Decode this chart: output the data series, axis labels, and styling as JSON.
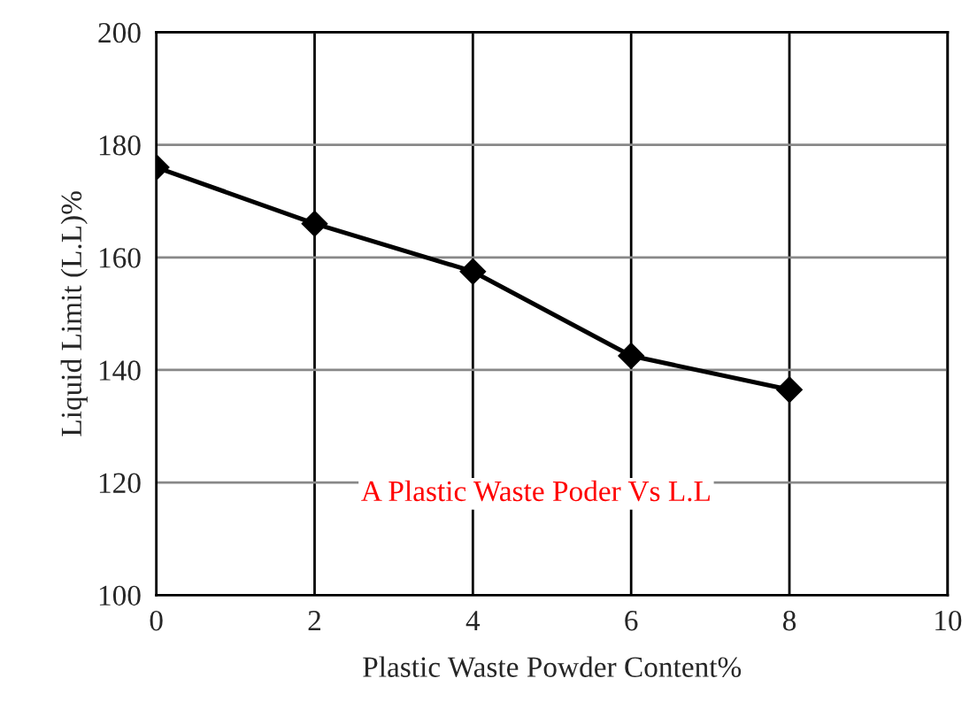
{
  "chart_data": {
    "type": "line",
    "xlabel": "Plastic Waste Powder Content%",
    "ylabel": "Liquid Limit (L.L)%",
    "x": [
      0,
      2,
      4,
      6,
      8
    ],
    "series": [
      {
        "color": "#000000",
        "values": [
          176,
          166,
          157.5,
          142.5,
          136.5
        ]
      }
    ],
    "xlim": [
      0,
      10
    ],
    "xticks": [
      0,
      2,
      4,
      6,
      8,
      10
    ],
    "ylim": [
      100,
      200
    ],
    "yticks": [
      100,
      120,
      140,
      160,
      180,
      200
    ],
    "grid": true,
    "marker": "diamond",
    "line_style": "solid",
    "legend": false,
    "annotations": [
      "A Plastic Waste Poder Vs L.L"
    ]
  }
}
